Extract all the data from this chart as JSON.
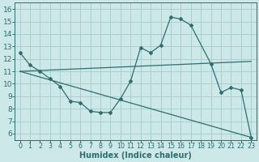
{
  "xlabel": "Humidex (Indice chaleur)",
  "bg_color": "#cce8e8",
  "line_color": "#2e6e6e",
  "grid_color": "#aacece",
  "xlim": [
    -0.5,
    23.5
  ],
  "ylim": [
    5.5,
    16.5
  ],
  "xticks": [
    0,
    1,
    2,
    3,
    4,
    5,
    6,
    7,
    8,
    9,
    10,
    11,
    12,
    13,
    14,
    15,
    16,
    17,
    18,
    19,
    20,
    21,
    22,
    23
  ],
  "yticks": [
    6,
    7,
    8,
    9,
    10,
    11,
    12,
    13,
    14,
    15,
    16
  ],
  "line1_x": [
    0,
    1,
    2,
    3,
    4,
    5,
    6,
    7,
    8,
    9,
    10,
    11,
    12,
    13,
    14,
    15,
    16,
    17,
    19,
    20,
    21,
    22,
    23
  ],
  "line1_y": [
    12.5,
    11.5,
    11.0,
    10.4,
    9.8,
    8.6,
    8.5,
    7.8,
    7.7,
    7.7,
    8.8,
    10.2,
    12.9,
    12.5,
    13.1,
    15.35,
    15.2,
    14.7,
    11.6,
    9.3,
    9.7,
    9.5,
    5.7
  ],
  "line2_x": [
    0,
    23
  ],
  "line2_y": [
    11.0,
    11.8
  ],
  "line3_x": [
    0,
    23
  ],
  "line3_y": [
    11.0,
    5.7
  ],
  "font_size_xlabel": 7.0,
  "font_size_ytick": 6.5,
  "font_size_xtick": 5.8
}
